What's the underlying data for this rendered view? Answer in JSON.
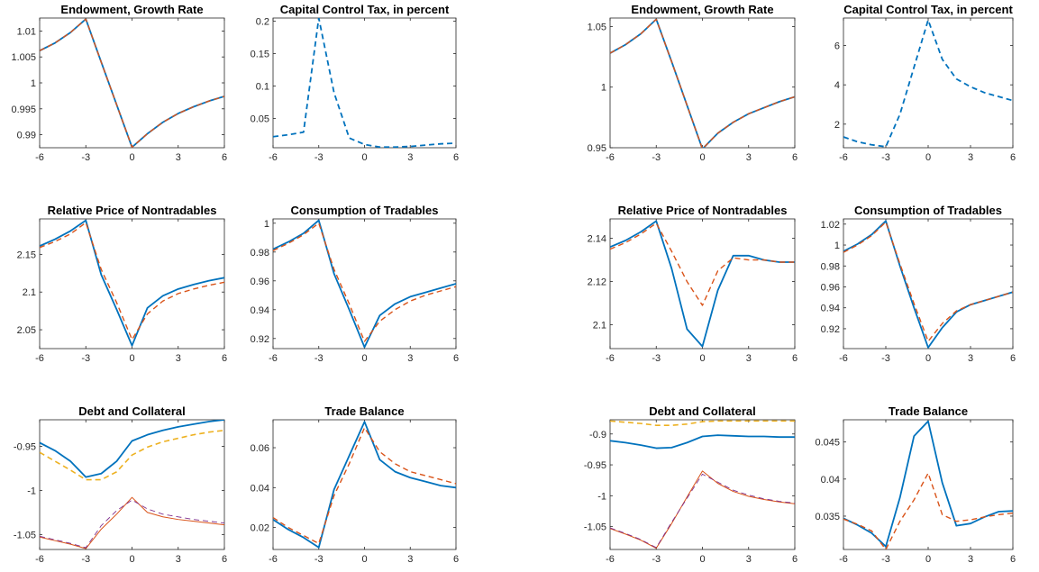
{
  "chart_data": [
    {
      "type": "line",
      "title": "Endowment, Growth Rate",
      "xlim": [
        -6,
        6
      ],
      "ylim": [
        0.9875,
        1.0125
      ],
      "xticks": [
        -6,
        -3,
        0,
        3,
        6
      ],
      "xtick_labels": [
        "-6",
        "-3",
        "0",
        "3",
        "6"
      ],
      "yticks": [
        0.99,
        0.995,
        1,
        1.005,
        1.01
      ],
      "ytick_labels": [
        "0.99",
        "0.995",
        "1",
        "1.005",
        "1.01"
      ],
      "x": [
        -6,
        -5,
        -4,
        -3,
        -2,
        -1,
        0,
        1,
        2,
        3,
        4,
        5,
        6
      ],
      "series": [
        {
          "color": "#0072BD",
          "style": "solid",
          "width": 1.8,
          "values": [
            1.0062,
            1.0077,
            1.0097,
            1.0123,
            1.004,
            0.9958,
            0.9876,
            0.9902,
            0.9924,
            0.9941,
            0.9954,
            0.9965,
            0.9974
          ]
        },
        {
          "color": "#D95319",
          "style": "dashed",
          "width": 1.4,
          "values": [
            1.0062,
            1.0077,
            1.0097,
            1.0123,
            1.004,
            0.9958,
            0.9876,
            0.9902,
            0.9924,
            0.9941,
            0.9954,
            0.9965,
            0.9974
          ]
        }
      ]
    },
    {
      "type": "line",
      "title": "Capital Control Tax, in percent",
      "xlim": [
        -6,
        6
      ],
      "ylim": [
        0.005,
        0.205
      ],
      "xticks": [
        -6,
        -3,
        0,
        3,
        6
      ],
      "xtick_labels": [
        "-6",
        "-3",
        "0",
        "3",
        "6"
      ],
      "yticks": [
        0.05,
        0.1,
        0.15,
        0.2
      ],
      "ytick_labels": [
        "0.05",
        "0.1",
        "0.15",
        "0.2"
      ],
      "x": [
        -6,
        -5,
        -4,
        -3,
        -2,
        -1,
        0,
        1,
        2,
        3,
        4,
        5,
        6
      ],
      "series": [
        {
          "color": "#0072BD",
          "style": "dashed",
          "width": 1.8,
          "values": [
            0.022,
            0.025,
            0.029,
            0.205,
            0.09,
            0.02,
            0.01,
            0.006,
            0.006,
            0.007,
            0.009,
            0.011,
            0.012
          ]
        }
      ]
    },
    {
      "type": "line",
      "title": "Endowment, Growth Rate",
      "xlim": [
        -6,
        6
      ],
      "ylim": [
        0.95,
        1.057
      ],
      "xticks": [
        -6,
        -3,
        0,
        3,
        6
      ],
      "xtick_labels": [
        "-6",
        "-3",
        "0",
        "3",
        "6"
      ],
      "yticks": [
        0.95,
        1,
        1.05
      ],
      "ytick_labels": [
        "0.95",
        "1",
        "1.05"
      ],
      "x": [
        -6,
        -5,
        -4,
        -3,
        -2,
        -1,
        0,
        1,
        2,
        3,
        4,
        5,
        6
      ],
      "series": [
        {
          "color": "#0072BD",
          "style": "solid",
          "width": 1.8,
          "values": [
            1.028,
            1.035,
            1.044,
            1.056,
            1.021,
            0.985,
            0.949,
            0.962,
            0.971,
            0.978,
            0.983,
            0.988,
            0.992
          ]
        },
        {
          "color": "#D95319",
          "style": "dashed",
          "width": 1.4,
          "values": [
            1.028,
            1.035,
            1.044,
            1.056,
            1.021,
            0.985,
            0.949,
            0.962,
            0.971,
            0.978,
            0.983,
            0.988,
            0.992
          ]
        }
      ]
    },
    {
      "type": "line",
      "title": "Capital Control Tax, in percent",
      "xlim": [
        -6,
        6
      ],
      "ylim": [
        0.8,
        7.4
      ],
      "xticks": [
        -6,
        -3,
        0,
        3,
        6
      ],
      "xtick_labels": [
        "-6",
        "-3",
        "0",
        "3",
        "6"
      ],
      "yticks": [
        2,
        4,
        6
      ],
      "ytick_labels": [
        "2",
        "4",
        "6"
      ],
      "x": [
        -6,
        -5,
        -4,
        -3,
        -2,
        -1,
        0,
        1,
        2,
        3,
        4,
        5,
        6
      ],
      "series": [
        {
          "color": "#0072BD",
          "style": "dashed",
          "width": 1.8,
          "values": [
            1.35,
            1.1,
            0.95,
            0.85,
            2.5,
            4.9,
            7.3,
            5.3,
            4.3,
            3.9,
            3.6,
            3.4,
            3.2
          ]
        }
      ]
    },
    {
      "type": "line",
      "title": "Relative Price of Nontradables",
      "xlim": [
        -6,
        6
      ],
      "ylim": [
        2.025,
        2.197
      ],
      "xticks": [
        -6,
        -3,
        0,
        3,
        6
      ],
      "xtick_labels": [
        "-6",
        "-3",
        "0",
        "3",
        "6"
      ],
      "yticks": [
        2.05,
        2.1,
        2.15
      ],
      "ytick_labels": [
        "2.05",
        "2.1",
        "2.15"
      ],
      "x": [
        -6,
        -5,
        -4,
        -3,
        -2,
        -1,
        0,
        1,
        2,
        3,
        4,
        5,
        6
      ],
      "series": [
        {
          "color": "#0072BD",
          "style": "solid",
          "width": 1.8,
          "values": [
            2.161,
            2.17,
            2.181,
            2.195,
            2.123,
            2.077,
            2.029,
            2.079,
            2.095,
            2.104,
            2.11,
            2.115,
            2.119
          ]
        },
        {
          "color": "#D95319",
          "style": "dashed",
          "width": 1.4,
          "values": [
            2.159,
            2.167,
            2.177,
            2.192,
            2.13,
            2.086,
            2.037,
            2.071,
            2.088,
            2.098,
            2.104,
            2.109,
            2.113
          ]
        }
      ]
    },
    {
      "type": "line",
      "title": "Consumption of Tradables",
      "xlim": [
        -6,
        6
      ],
      "ylim": [
        0.913,
        1.003
      ],
      "xticks": [
        -6,
        -3,
        0,
        3,
        6
      ],
      "xtick_labels": [
        "-6",
        "-3",
        "0",
        "3",
        "6"
      ],
      "yticks": [
        0.92,
        0.94,
        0.96,
        0.98,
        1
      ],
      "ytick_labels": [
        "0.92",
        "0.94",
        "0.96",
        "0.98",
        "1"
      ],
      "x": [
        -6,
        -5,
        -4,
        -3,
        -2,
        -1,
        0,
        1,
        2,
        3,
        4,
        5,
        6
      ],
      "series": [
        {
          "color": "#0072BD",
          "style": "solid",
          "width": 1.8,
          "values": [
            0.982,
            0.987,
            0.993,
            1.002,
            0.965,
            0.94,
            0.914,
            0.936,
            0.944,
            0.949,
            0.952,
            0.955,
            0.958
          ]
        },
        {
          "color": "#D95319",
          "style": "dashed",
          "width": 1.4,
          "values": [
            0.981,
            0.986,
            0.992,
            1.0,
            0.968,
            0.944,
            0.918,
            0.932,
            0.94,
            0.946,
            0.95,
            0.953,
            0.956
          ]
        }
      ]
    },
    {
      "type": "line",
      "title": "Relative Price of Nontradables",
      "xlim": [
        -6,
        6
      ],
      "ylim": [
        2.089,
        2.149
      ],
      "xticks": [
        -6,
        -3,
        0,
        3,
        6
      ],
      "xtick_labels": [
        "-6",
        "-3",
        "0",
        "3",
        "6"
      ],
      "yticks": [
        2.1,
        2.12,
        2.14
      ],
      "ytick_labels": [
        "2.1",
        "2.12",
        "2.14"
      ],
      "x": [
        -6,
        -5,
        -4,
        -3,
        -2,
        -1,
        0,
        1,
        2,
        3,
        4,
        5,
        6
      ],
      "series": [
        {
          "color": "#0072BD",
          "style": "solid",
          "width": 1.8,
          "values": [
            2.136,
            2.139,
            2.143,
            2.148,
            2.126,
            2.098,
            2.09,
            2.116,
            2.132,
            2.132,
            2.13,
            2.129,
            2.129
          ]
        },
        {
          "color": "#D95319",
          "style": "dashed",
          "width": 1.4,
          "values": [
            2.135,
            2.138,
            2.142,
            2.147,
            2.134,
            2.12,
            2.109,
            2.125,
            2.131,
            2.13,
            2.13,
            2.129,
            2.129
          ]
        }
      ]
    },
    {
      "type": "line",
      "title": "Consumption of Tradables",
      "xlim": [
        -6,
        6
      ],
      "ylim": [
        0.901,
        1.025
      ],
      "xticks": [
        -6,
        -3,
        0,
        3,
        6
      ],
      "xtick_labels": [
        "-6",
        "-3",
        "0",
        "3",
        "6"
      ],
      "yticks": [
        0.92,
        0.94,
        0.96,
        0.98,
        1,
        1.02
      ],
      "ytick_labels": [
        "0.92",
        "0.94",
        "0.96",
        "0.98",
        "1",
        "1.02"
      ],
      "x": [
        -6,
        -5,
        -4,
        -3,
        -2,
        -1,
        0,
        1,
        2,
        3,
        4,
        5,
        6
      ],
      "series": [
        {
          "color": "#0072BD",
          "style": "solid",
          "width": 1.8,
          "values": [
            0.994,
            1.001,
            1.01,
            1.023,
            0.98,
            0.94,
            0.902,
            0.921,
            0.936,
            0.943,
            0.947,
            0.951,
            0.955
          ]
        },
        {
          "color": "#D95319",
          "style": "dashed",
          "width": 1.4,
          "values": [
            0.993,
            1.0,
            1.009,
            1.022,
            0.982,
            0.944,
            0.908,
            0.925,
            0.937,
            0.943,
            0.947,
            0.951,
            0.955
          ]
        }
      ]
    },
    {
      "type": "line",
      "title": "Debt and Collateral",
      "xlim": [
        -6,
        6
      ],
      "ylim": [
        -1.067,
        -0.92
      ],
      "xticks": [
        -6,
        -3,
        0,
        3,
        6
      ],
      "xtick_labels": [
        "-6",
        "-3",
        "0",
        "3",
        "6"
      ],
      "yticks": [
        -1.05,
        -1,
        -0.95
      ],
      "ytick_labels": [
        "-1.05",
        "-1",
        "-0.95"
      ],
      "x": [
        -6,
        -5,
        -4,
        -3,
        -2,
        -1,
        0,
        1,
        2,
        3,
        4,
        5,
        6
      ],
      "series": [
        {
          "color": "#0072BD",
          "style": "solid",
          "width": 1.8,
          "values": [
            -0.946,
            -0.955,
            -0.967,
            -0.985,
            -0.981,
            -0.967,
            -0.944,
            -0.937,
            -0.932,
            -0.928,
            -0.925,
            -0.922,
            -0.92
          ]
        },
        {
          "color": "#EDB120",
          "style": "dashed",
          "width": 1.6,
          "values": [
            -0.957,
            -0.967,
            -0.977,
            -0.988,
            -0.988,
            -0.979,
            -0.96,
            -0.951,
            -0.945,
            -0.941,
            -0.937,
            -0.934,
            -0.932
          ]
        },
        {
          "color": "#D95319",
          "style": "solid",
          "width": 1.0,
          "values": [
            -1.053,
            -1.057,
            -1.061,
            -1.066,
            -1.044,
            -1.027,
            -1.008,
            -1.025,
            -1.03,
            -1.033,
            -1.035,
            -1.037,
            -1.039
          ]
        },
        {
          "color": "#7E2F8E",
          "style": "dashed",
          "width": 0.9,
          "values": [
            -1.052,
            -1.056,
            -1.06,
            -1.065,
            -1.04,
            -1.023,
            -1.011,
            -1.021,
            -1.027,
            -1.03,
            -1.033,
            -1.035,
            -1.037
          ]
        }
      ]
    },
    {
      "type": "line",
      "title": "Trade Balance",
      "xlim": [
        -6,
        6
      ],
      "ylim": [
        0.009,
        0.074
      ],
      "xticks": [
        -6,
        -3,
        0,
        3,
        6
      ],
      "xtick_labels": [
        "-6",
        "-3",
        "0",
        "3",
        "6"
      ],
      "yticks": [
        0.02,
        0.04,
        0.06
      ],
      "ytick_labels": [
        "0.02",
        "0.04",
        "0.06"
      ],
      "x": [
        -6,
        -5,
        -4,
        -3,
        -2,
        -1,
        0,
        1,
        2,
        3,
        4,
        5,
        6
      ],
      "series": [
        {
          "color": "#0072BD",
          "style": "solid",
          "width": 1.8,
          "values": [
            0.024,
            0.019,
            0.015,
            0.01,
            0.039,
            0.056,
            0.073,
            0.054,
            0.048,
            0.045,
            0.043,
            0.041,
            0.04
          ]
        },
        {
          "color": "#D95319",
          "style": "dashed",
          "width": 1.4,
          "values": [
            0.025,
            0.02,
            0.016,
            0.012,
            0.036,
            0.052,
            0.07,
            0.058,
            0.052,
            0.048,
            0.046,
            0.044,
            0.042
          ]
        }
      ]
    },
    {
      "type": "line",
      "title": "Debt and Collateral",
      "xlim": [
        -6,
        6
      ],
      "ylim": [
        -1.087,
        -0.877
      ],
      "xticks": [
        -6,
        -3,
        0,
        3,
        6
      ],
      "xtick_labels": [
        "-6",
        "-3",
        "0",
        "3",
        "6"
      ],
      "yticks": [
        -1.05,
        -1,
        -0.95,
        -0.9
      ],
      "ytick_labels": [
        "-1.05",
        "-1",
        "-0.95",
        "-0.9"
      ],
      "x": [
        -6,
        -5,
        -4,
        -3,
        -2,
        -1,
        0,
        1,
        2,
        3,
        4,
        5,
        6
      ],
      "series": [
        {
          "color": "#0072BD",
          "style": "solid",
          "width": 1.8,
          "values": [
            -0.911,
            -0.914,
            -0.918,
            -0.923,
            -0.922,
            -0.914,
            -0.904,
            -0.902,
            -0.903,
            -0.904,
            -0.904,
            -0.905,
            -0.905
          ]
        },
        {
          "color": "#EDB120",
          "style": "dashed",
          "width": 1.6,
          "values": [
            -0.879,
            -0.881,
            -0.883,
            -0.886,
            -0.886,
            -0.884,
            -0.88,
            -0.879,
            -0.879,
            -0.879,
            -0.879,
            -0.879,
            -0.879
          ]
        },
        {
          "color": "#D95319",
          "style": "solid",
          "width": 1.0,
          "values": [
            -1.053,
            -1.062,
            -1.072,
            -1.085,
            -1.045,
            -1.002,
            -0.96,
            -0.98,
            -0.993,
            -1.001,
            -1.006,
            -1.01,
            -1.013
          ]
        },
        {
          "color": "#7E2F8E",
          "style": "dashed",
          "width": 0.9,
          "values": [
            -1.052,
            -1.061,
            -1.071,
            -1.084,
            -1.043,
            -1.004,
            -0.965,
            -0.978,
            -0.991,
            -0.999,
            -1.005,
            -1.009,
            -1.012
          ]
        }
      ]
    },
    {
      "type": "line",
      "title": "Trade Balance",
      "xlim": [
        -6,
        6
      ],
      "ylim": [
        0.0305,
        0.048
      ],
      "xticks": [
        -6,
        -3,
        0,
        3,
        6
      ],
      "xtick_labels": [
        "-6",
        "-3",
        "0",
        "3",
        "6"
      ],
      "yticks": [
        0.035,
        0.04,
        0.045
      ],
      "ytick_labels": [
        "0.035",
        "0.04",
        "0.045"
      ],
      "x": [
        -6,
        -5,
        -4,
        -3,
        -2,
        -1,
        0,
        1,
        2,
        3,
        4,
        5,
        6
      ],
      "series": [
        {
          "color": "#0072BD",
          "style": "solid",
          "width": 1.8,
          "values": [
            0.0347,
            0.0338,
            0.0327,
            0.0309,
            0.0375,
            0.0458,
            0.0478,
            0.0395,
            0.0337,
            0.034,
            0.0349,
            0.0356,
            0.0357
          ]
        },
        {
          "color": "#D95319",
          "style": "dashed",
          "width": 1.4,
          "values": [
            0.0346,
            0.0339,
            0.033,
            0.0305,
            0.0343,
            0.0372,
            0.0408,
            0.0352,
            0.0343,
            0.0345,
            0.0349,
            0.0352,
            0.0354
          ]
        }
      ]
    }
  ]
}
